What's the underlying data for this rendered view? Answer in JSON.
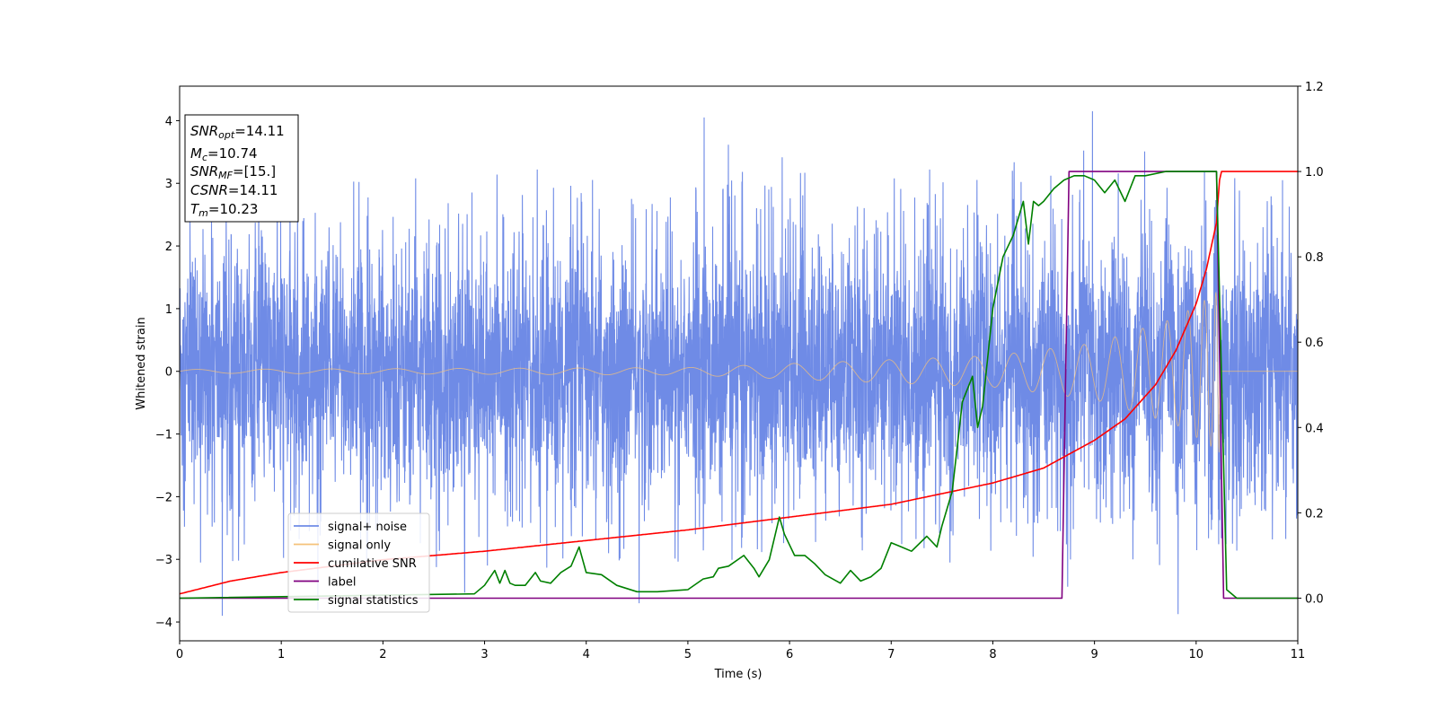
{
  "chart_data": {
    "type": "line",
    "xlabel": "Time (s)",
    "ylabel": "Whitened strain",
    "xlim": [
      0,
      11
    ],
    "ylim_left": [
      -4.3,
      4.55
    ],
    "ylim_right": [
      -0.1,
      1.2
    ],
    "x_ticks": [
      "0",
      "1",
      "2",
      "3",
      "4",
      "5",
      "6",
      "7",
      "8",
      "9",
      "10",
      "11"
    ],
    "y_ticks_left": [
      "4",
      "3",
      "2",
      "1",
      "0",
      "−1",
      "−2",
      "−3",
      "−4"
    ],
    "y_ticks_right": [
      "1.2",
      "1.0",
      "0.8",
      "0.6",
      "0.4",
      "0.2",
      "0.0"
    ],
    "grid": false,
    "legend_position": "lower-left",
    "annotation": [
      {
        "base": "SNR",
        "sub": "opt",
        "value": "=14.11"
      },
      {
        "base": "M",
        "sub": "c",
        "value": "=10.74"
      },
      {
        "base": "SNR",
        "sub": "MF",
        "value": "=[15.]"
      },
      {
        "base": "CSNR",
        "sub": "",
        "value": "=14.11"
      },
      {
        "base": "T",
        "sub": "m",
        "value": "=10.23"
      }
    ],
    "series": [
      {
        "name": "signal+ noise",
        "color": "#6f8be6",
        "axis": "left",
        "kind": "noise",
        "noise_band": [
          -2.6,
          3.4
        ],
        "notable_peaks": [
          [
            0.42,
            -3.9
          ],
          [
            5.16,
            4.05
          ],
          [
            8.98,
            4.15
          ],
          [
            4.52,
            -3.7
          ]
        ]
      },
      {
        "name": "signal only",
        "color": "#f5c27a",
        "axis": "left",
        "kind": "chirp",
        "amplitude_envelope": [
          [
            0,
            0.03
          ],
          [
            5,
            0.06
          ],
          [
            8,
            0.25
          ],
          [
            9,
            0.45
          ],
          [
            9.8,
            0.85
          ],
          [
            10.15,
            1.2
          ],
          [
            10.23,
            1.3
          ],
          [
            10.24,
            0.0
          ],
          [
            11,
            0.0
          ]
        ]
      },
      {
        "name": "cumilative SNR",
        "color": "#ff0000",
        "axis": "right",
        "x": [
          0,
          0.5,
          1,
          2,
          3,
          4,
          5,
          6,
          7,
          7.5,
          8,
          8.5,
          9,
          9.3,
          9.6,
          9.8,
          10.0,
          10.1,
          10.2,
          10.23,
          10.25,
          11
        ],
        "y": [
          0.01,
          0.04,
          0.06,
          0.09,
          0.11,
          0.135,
          0.16,
          0.19,
          0.22,
          0.245,
          0.27,
          0.305,
          0.37,
          0.42,
          0.5,
          0.58,
          0.69,
          0.77,
          0.88,
          0.98,
          1.0,
          1.0
        ]
      },
      {
        "name": "label",
        "color": "#800080",
        "axis": "right",
        "x": [
          0,
          8.68,
          8.75,
          10.2,
          10.27,
          11
        ],
        "y": [
          0.0,
          0.0,
          1.0,
          1.0,
          0.0,
          0.0
        ]
      },
      {
        "name": "signal statistics",
        "color": "#008000",
        "axis": "right",
        "x": [
          0,
          2.9,
          3.0,
          3.1,
          3.15,
          3.2,
          3.25,
          3.3,
          3.4,
          3.5,
          3.55,
          3.65,
          3.75,
          3.85,
          3.93,
          4.0,
          4.15,
          4.3,
          4.5,
          4.7,
          5.0,
          5.15,
          5.25,
          5.3,
          5.4,
          5.55,
          5.65,
          5.7,
          5.8,
          5.9,
          5.95,
          6.05,
          6.15,
          6.25,
          6.35,
          6.5,
          6.6,
          6.7,
          6.8,
          6.9,
          7.0,
          7.1,
          7.2,
          7.35,
          7.45,
          7.5,
          7.6,
          7.7,
          7.8,
          7.85,
          7.9,
          8.0,
          8.1,
          8.2,
          8.3,
          8.35,
          8.4,
          8.45,
          8.5,
          8.6,
          8.7,
          8.8,
          8.9,
          9.0,
          9.1,
          9.2,
          9.3,
          9.35,
          9.4,
          9.5,
          9.7,
          10.0,
          10.2,
          10.3,
          10.4,
          11
        ],
        "y": [
          0.0,
          0.01,
          0.03,
          0.065,
          0.035,
          0.065,
          0.035,
          0.03,
          0.03,
          0.06,
          0.04,
          0.035,
          0.06,
          0.075,
          0.12,
          0.06,
          0.055,
          0.03,
          0.015,
          0.015,
          0.02,
          0.045,
          0.05,
          0.07,
          0.075,
          0.1,
          0.07,
          0.05,
          0.09,
          0.19,
          0.15,
          0.1,
          0.1,
          0.08,
          0.055,
          0.035,
          0.065,
          0.04,
          0.05,
          0.07,
          0.13,
          0.12,
          0.11,
          0.145,
          0.12,
          0.17,
          0.25,
          0.46,
          0.52,
          0.4,
          0.45,
          0.68,
          0.8,
          0.85,
          0.93,
          0.83,
          0.93,
          0.92,
          0.93,
          0.96,
          0.98,
          0.99,
          0.99,
          0.98,
          0.95,
          0.98,
          0.93,
          0.96,
          0.99,
          0.99,
          1.0,
          1.0,
          1.0,
          0.02,
          0.0,
          0.0
        ]
      }
    ]
  }
}
